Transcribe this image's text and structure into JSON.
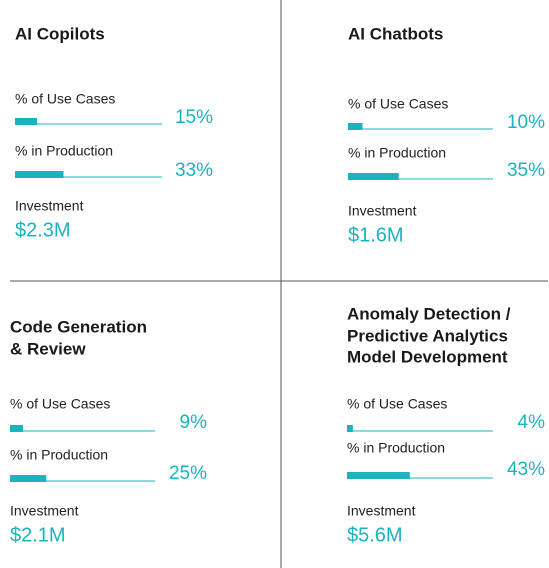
{
  "panels": [
    {
      "title": [
        "AI Copilots"
      ],
      "metrics": [
        {
          "label": "% of Use Cases",
          "value": 15,
          "value_label": "15%"
        },
        {
          "label": "% in Production",
          "value": 33,
          "value_label": "33%"
        }
      ],
      "investment": {
        "label": "Investment",
        "value": "$2.3M"
      }
    },
    {
      "title": [
        "AI Chatbots"
      ],
      "metrics": [
        {
          "label": "% of Use Cases",
          "value": 10,
          "value_label": "10%"
        },
        {
          "label": "% in Production",
          "value": 35,
          "value_label": "35%"
        }
      ],
      "investment": {
        "label": "Investment",
        "value": "$1.6M"
      }
    },
    {
      "title": [
        "Code Generation",
        "& Review"
      ],
      "metrics": [
        {
          "label": "% of Use Cases",
          "value": 9,
          "value_label": "9%"
        },
        {
          "label": "% in Production",
          "value": 25,
          "value_label": "25%"
        }
      ],
      "investment": {
        "label": "Investment",
        "value": "$2.1M"
      }
    },
    {
      "title": [
        "Anomaly Detection /",
        "Predictive Analytics",
        "Model Development"
      ],
      "metrics": [
        {
          "label": "% of Use Cases",
          "value": 4,
          "value_label": "4%"
        },
        {
          "label": "% in Production",
          "value": 43,
          "value_label": "43%"
        }
      ],
      "investment": {
        "label": "Investment",
        "value": "$5.6M"
      }
    }
  ]
}
